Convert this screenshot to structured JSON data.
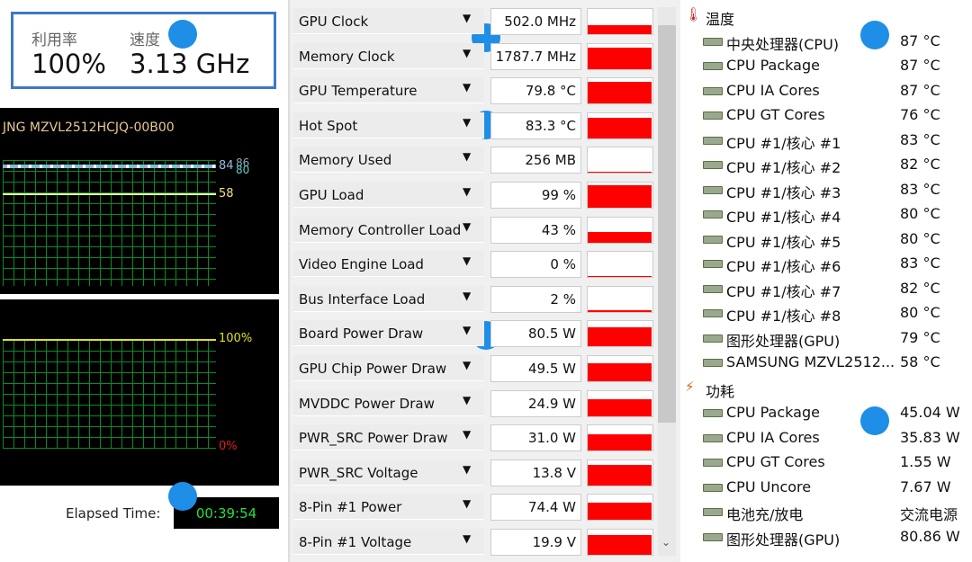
{
  "task_manager": {
    "utilization_label": "利用率",
    "utilization": "100%",
    "speed_label": "速度",
    "speed": "3.13 GHz"
  },
  "disk_graph": {
    "title": "JNG MZVL2512HCJQ-00B00",
    "labels": [
      "84",
      "86",
      "80",
      "58"
    ]
  },
  "load_graph": {
    "labels": [
      "100%",
      "0%"
    ]
  },
  "elapsed": {
    "label": "Elapsed Time:",
    "value": "00:39:54"
  },
  "gpu_sensors": [
    {
      "name": "GPU Clock",
      "value": "502.0 MHz"
    },
    {
      "name": "Memory Clock",
      "value": "1787.7 MHz"
    },
    {
      "name": "GPU Temperature",
      "value": "79.8 °C"
    },
    {
      "name": "Hot Spot",
      "value": "83.3 °C"
    },
    {
      "name": "Memory Used",
      "value": "256 MB"
    },
    {
      "name": "GPU Load",
      "value": "99 %"
    },
    {
      "name": "Memory Controller Load",
      "value": "43 %"
    },
    {
      "name": "Video Engine Load",
      "value": "0 %"
    },
    {
      "name": "Bus Interface Load",
      "value": "2 %"
    },
    {
      "name": "Board Power Draw",
      "value": "80.5 W"
    },
    {
      "name": "GPU Chip Power Draw",
      "value": "49.5 W"
    },
    {
      "name": "MVDDC Power Draw",
      "value": "24.9 W"
    },
    {
      "name": "PWR_SRC Power Draw",
      "value": "31.0 W"
    },
    {
      "name": "PWR_SRC Voltage",
      "value": "13.8 V"
    },
    {
      "name": "8-Pin #1 Power",
      "value": "74.4 W"
    },
    {
      "name": "8-Pin #1 Voltage",
      "value": "19.9 V"
    }
  ],
  "hwinfo": {
    "sections": [
      {
        "title": "温度",
        "rows": [
          {
            "name": "中央处理器(CPU)",
            "value": "87 °C"
          },
          {
            "name": "CPU Package",
            "value": "87 °C"
          },
          {
            "name": "CPU IA Cores",
            "value": "87 °C"
          },
          {
            "name": "CPU GT Cores",
            "value": "76 °C"
          },
          {
            "name": "CPU #1/核心 #1",
            "value": "83 °C"
          },
          {
            "name": "CPU #1/核心 #2",
            "value": "82 °C"
          },
          {
            "name": "CPU #1/核心 #3",
            "value": "83 °C"
          },
          {
            "name": "CPU #1/核心 #4",
            "value": "80 °C"
          },
          {
            "name": "CPU #1/核心 #5",
            "value": "80 °C"
          },
          {
            "name": "CPU #1/核心 #6",
            "value": "83 °C"
          },
          {
            "name": "CPU #1/核心 #7",
            "value": "82 °C"
          },
          {
            "name": "CPU #1/核心 #8",
            "value": "80 °C"
          },
          {
            "name": "图形处理器(GPU)",
            "value": "79 °C"
          },
          {
            "name": "SAMSUNG MZVL2512...",
            "value": "58 °C"
          }
        ]
      },
      {
        "title": "功耗",
        "rows": [
          {
            "name": "CPU Package",
            "value": "45.04 W"
          },
          {
            "name": "CPU IA Cores",
            "value": "35.83 W"
          },
          {
            "name": "CPU GT Cores",
            "value": "1.55 W"
          },
          {
            "name": "CPU Uncore",
            "value": "7.67 W"
          },
          {
            "name": "电池充/放电",
            "value": "交流电源"
          },
          {
            "name": "图形处理器(GPU)",
            "value": "80.86 W"
          }
        ]
      }
    ]
  }
}
